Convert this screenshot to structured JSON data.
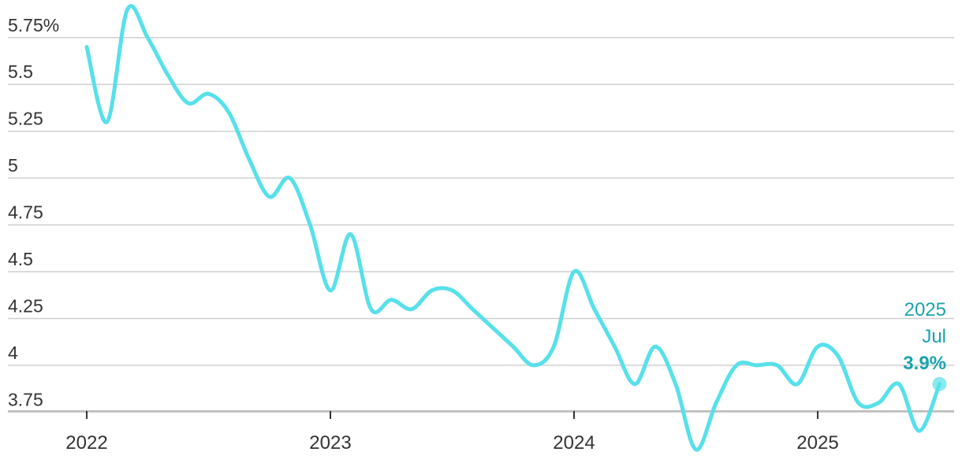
{
  "chart_data": {
    "type": "line",
    "title": "",
    "xlabel": "",
    "ylabel": "",
    "ylim": [
      3.68,
      5.93
    ],
    "xlim": [
      "2022-01",
      "2025-07"
    ],
    "y_ticks": [
      3.75,
      4,
      4.25,
      4.5,
      4.75,
      5,
      5.25,
      5.5,
      5.75
    ],
    "y_tick_labels": [
      "3.75",
      "4",
      "4.25",
      "4.5",
      "4.75",
      "5",
      "5.25",
      "5.5",
      "5.75%"
    ],
    "x_ticks": [
      "2022-01",
      "2023-01",
      "2024-01",
      "2025-01"
    ],
    "x_tick_labels": [
      "2022",
      "2023",
      "2024",
      "2025"
    ],
    "grid": true,
    "series": [
      {
        "color": "#57e0ea",
        "x": [
          "2022-01",
          "2022-02",
          "2022-03",
          "2022-04",
          "2022-05",
          "2022-06",
          "2022-07",
          "2022-08",
          "2022-09",
          "2022-10",
          "2022-11",
          "2022-12",
          "2023-01",
          "2023-02",
          "2023-03",
          "2023-04",
          "2023-05",
          "2023-06",
          "2023-07",
          "2023-08",
          "2023-09",
          "2023-10",
          "2023-11",
          "2023-12",
          "2024-01",
          "2024-02",
          "2024-03",
          "2024-04",
          "2024-05",
          "2024-06",
          "2024-07",
          "2024-08",
          "2024-09",
          "2024-10",
          "2024-11",
          "2024-12",
          "2025-01",
          "2025-02",
          "2025-03",
          "2025-04",
          "2025-05",
          "2025-06",
          "2025-07"
        ],
        "values": [
          5.7,
          5.3,
          5.9,
          5.75,
          5.55,
          5.4,
          5.45,
          5.35,
          5.1,
          4.9,
          5.0,
          4.75,
          4.4,
          4.7,
          4.3,
          4.35,
          4.3,
          4.4,
          4.4,
          4.3,
          4.2,
          4.1,
          4.0,
          4.1,
          4.5,
          4.3,
          4.1,
          3.9,
          4.1,
          3.9,
          3.55,
          3.8,
          4.0,
          4.0,
          4.0,
          3.9,
          4.1,
          4.05,
          3.8,
          3.8,
          3.9,
          3.65,
          3.9
        ]
      }
    ],
    "annotation": {
      "line1": "2025",
      "line2": "Jul",
      "value_label": "3.9%",
      "text_color": "#1aa3ad"
    }
  }
}
